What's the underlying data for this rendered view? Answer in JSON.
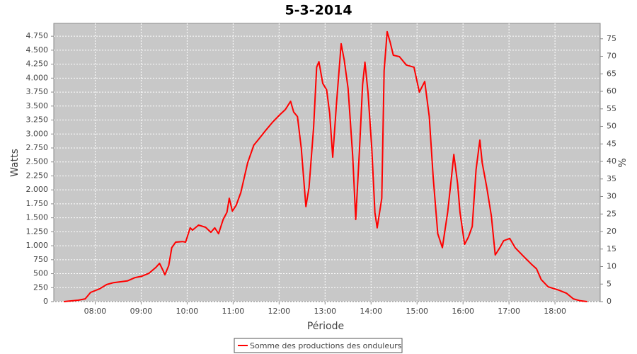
{
  "chart_data": {
    "type": "line",
    "title": "5-3-2014",
    "x_label": "Période",
    "y_label": "Watts",
    "y2_label": "%",
    "x": [
      "07:19",
      "07:38",
      "07:47",
      "07:54",
      "08:06",
      "08:15",
      "08:24",
      "08:33",
      "08:42",
      "08:52",
      "09:01",
      "09:10",
      "09:19",
      "09:24",
      "09:29",
      "09:31",
      "09:36",
      "09:40",
      "09:45",
      "09:54",
      "09:58",
      "10:04",
      "10:07",
      "10:15",
      "10:24",
      "10:31",
      "10:36",
      "10:41",
      "10:47",
      "10:52",
      "10:55",
      "10:59",
      "11:04",
      "11:10",
      "11:19",
      "11:27",
      "11:33",
      "11:42",
      "11:52",
      "12:01",
      "12:08",
      "12:15",
      "12:19",
      "12:24",
      "12:29",
      "12:35",
      "12:39",
      "12:45",
      "12:49",
      "12:52",
      "12:57",
      "13:02",
      "13:06",
      "13:10",
      "13:15",
      "13:21",
      "13:25",
      "13:30",
      "13:36",
      "13:40",
      "13:45",
      "13:49",
      "13:52",
      "13:56",
      "14:01",
      "14:05",
      "14:08",
      "14:14",
      "14:17",
      "14:21",
      "14:25",
      "14:29",
      "14:37",
      "14:46",
      "14:56",
      "15:03",
      "15:10",
      "15:16",
      "15:21",
      "15:27",
      "15:33",
      "15:40",
      "15:45",
      "15:48",
      "15:53",
      "15:56",
      "16:02",
      "16:07",
      "16:12",
      "16:17",
      "16:22",
      "16:25",
      "16:31",
      "16:37",
      "16:42",
      "16:48",
      "16:53",
      "17:01",
      "17:08",
      "17:19",
      "17:30",
      "17:36",
      "17:42",
      "17:51",
      "18:05",
      "18:15",
      "18:24",
      "18:33",
      "18:42"
    ],
    "series": [
      {
        "name": "Somme des productions des onduleurs",
        "color": "#ff0000",
        "values": [
          0,
          25,
          50,
          165,
          230,
          305,
          340,
          355,
          370,
          430,
          455,
          505,
          610,
          685,
          545,
          480,
          645,
          965,
          1065,
          1075,
          1065,
          1320,
          1280,
          1370,
          1330,
          1240,
          1320,
          1215,
          1470,
          1600,
          1850,
          1620,
          1725,
          1950,
          2485,
          2800,
          2900,
          3055,
          3220,
          3345,
          3435,
          3585,
          3395,
          3310,
          2740,
          1700,
          2040,
          3120,
          4195,
          4295,
          3905,
          3790,
          3370,
          2585,
          3560,
          4615,
          4320,
          3815,
          2610,
          1470,
          2740,
          3880,
          4285,
          3750,
          2740,
          1595,
          1320,
          1850,
          4130,
          4830,
          4640,
          4410,
          4385,
          4235,
          4195,
          3750,
          3940,
          3310,
          2230,
          1215,
          965,
          1600,
          2230,
          2635,
          2105,
          1600,
          1025,
          1155,
          1345,
          2360,
          2890,
          2485,
          2040,
          1535,
          835,
          965,
          1090,
          1130,
          965,
          810,
          660,
          585,
          395,
          265,
          205,
          150,
          50,
          15,
          0
        ]
      }
    ],
    "xlim": [
      "07:06",
      "18:59"
    ],
    "xticks": [
      "08:00",
      "09:00",
      "10:00",
      "11:00",
      "12:00",
      "13:00",
      "14:00",
      "15:00",
      "16:00",
      "17:00",
      "18:00"
    ],
    "ylim": [
      0,
      4980
    ],
    "yticks": [
      0,
      250,
      500,
      750,
      {
        "value": 1000,
        "label": "1.000"
      },
      {
        "value": 1250,
        "label": "1.250"
      },
      {
        "value": 1500,
        "label": "1.500"
      },
      {
        "value": 1750,
        "label": "1.750"
      },
      {
        "value": 2000,
        "label": "2.000"
      },
      {
        "value": 2250,
        "label": "2.250"
      },
      {
        "value": 2500,
        "label": "2.500"
      },
      {
        "value": 2750,
        "label": "2.750"
      },
      {
        "value": 3000,
        "label": "3.000"
      },
      {
        "value": 3250,
        "label": "3.250"
      },
      {
        "value": 3500,
        "label": "3.500"
      },
      {
        "value": 3750,
        "label": "3.750"
      },
      {
        "value": 4000,
        "label": "4.000"
      },
      {
        "value": 4250,
        "label": "4.250"
      },
      {
        "value": 4500,
        "label": "4.500"
      },
      {
        "value": 4750,
        "label": "4.750"
      }
    ],
    "y2lim": [
      0,
      79.4
    ],
    "y2ticks": [
      0,
      5,
      10,
      15,
      20,
      25,
      30,
      35,
      40,
      45,
      50,
      55,
      60,
      65,
      70,
      75
    ],
    "grid": true,
    "legend": "bottom",
    "plot_background": "#c8c8c8"
  }
}
